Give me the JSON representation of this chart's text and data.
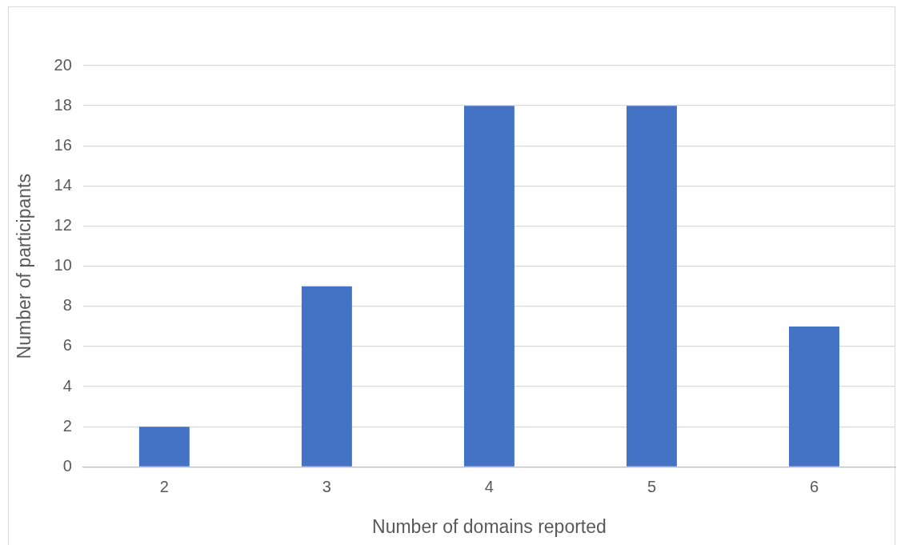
{
  "chart_data": {
    "type": "bar",
    "xlabel": "Number of domains reported",
    "ylabel": "Number of participants",
    "categories": [
      "2",
      "3",
      "4",
      "5",
      "6"
    ],
    "values": [
      2,
      9,
      18,
      18,
      7
    ],
    "color": "#4472c4",
    "ylim": [
      0,
      20
    ],
    "yticks": [
      0,
      2,
      4,
      6,
      8,
      10,
      12,
      14,
      16,
      18,
      20
    ],
    "grid": "y",
    "legend": false
  }
}
